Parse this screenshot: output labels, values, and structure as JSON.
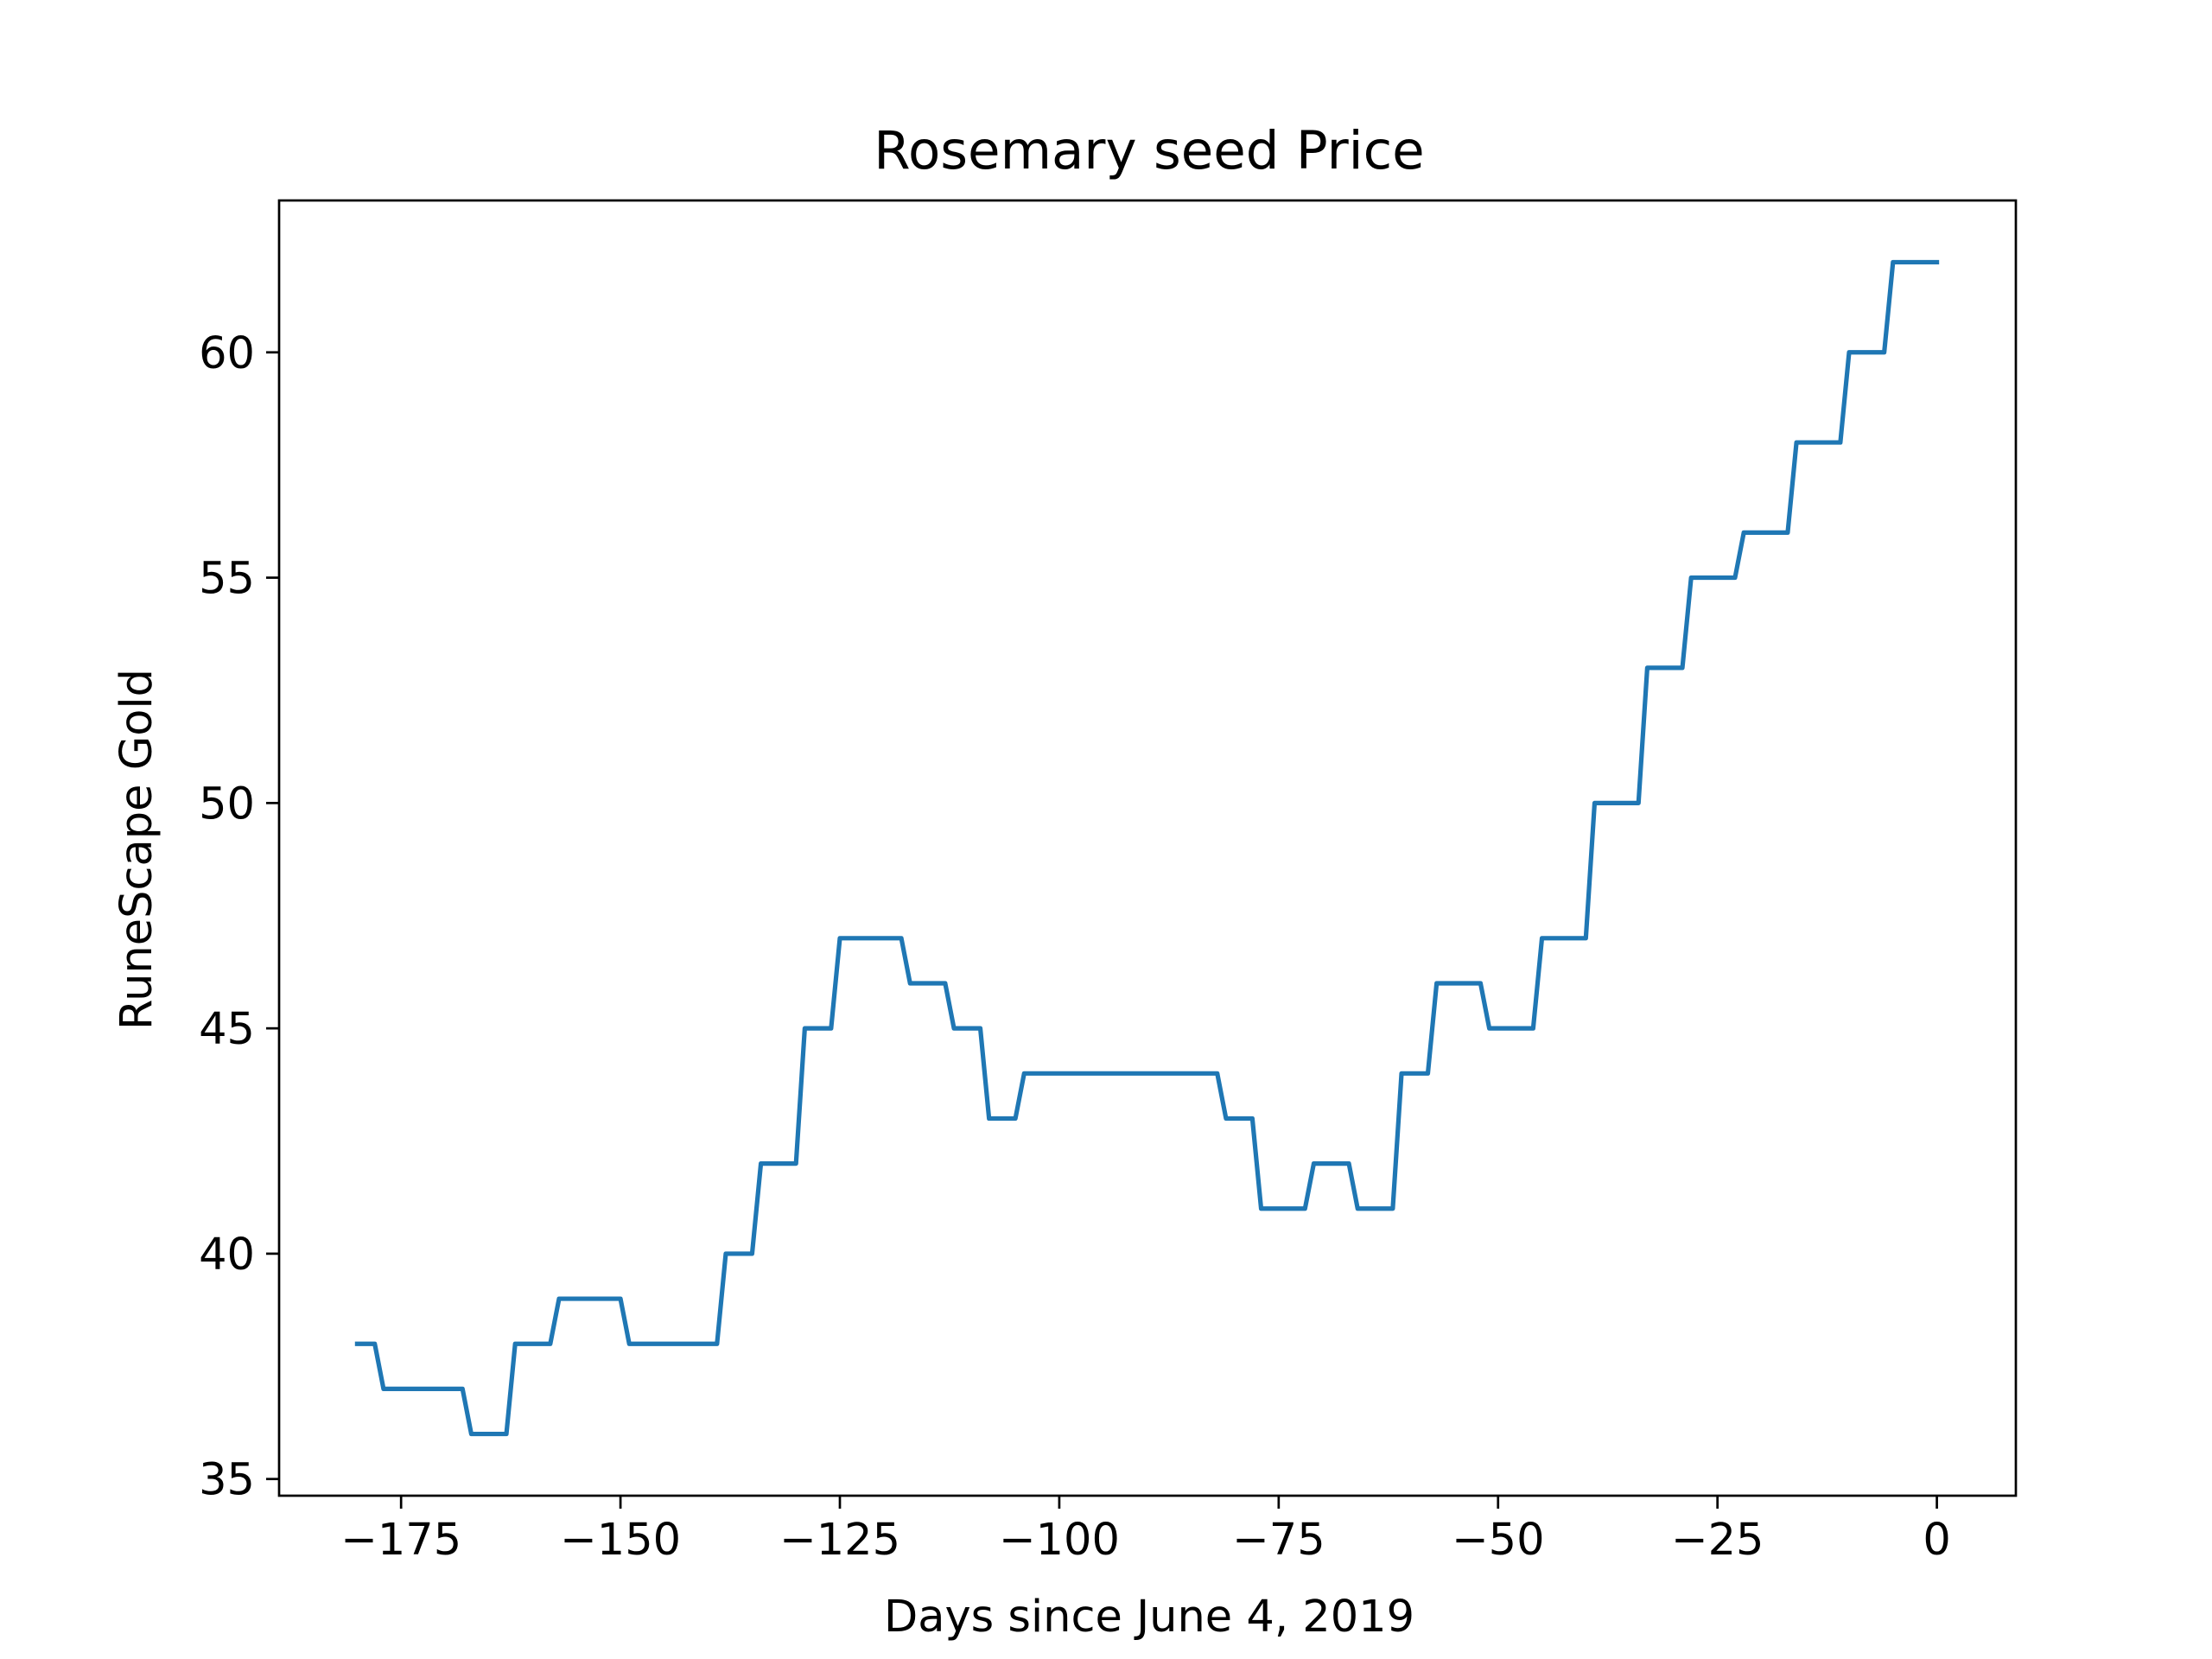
{
  "chart_data": {
    "type": "line",
    "title": "Rosemary seed Price",
    "xlabel": "Days since June 4, 2019",
    "ylabel": "RuneScape Gold",
    "xlim": [
      -188.9,
      9
    ],
    "ylim": [
      34.63,
      63.37
    ],
    "xticks": [
      -175,
      -150,
      -125,
      -100,
      -75,
      -50,
      -25,
      0
    ],
    "xtick_labels": [
      "−175",
      "−150",
      "−125",
      "−100",
      "−75",
      "−50",
      "−25",
      "0"
    ],
    "yticks": [
      35,
      40,
      45,
      50,
      55,
      60
    ],
    "ytick_labels": [
      "35",
      "40",
      "45",
      "50",
      "55",
      "60"
    ],
    "grid": false,
    "legend": "none",
    "series": [
      {
        "color": "#1f77b4",
        "x": [
          -180,
          -178,
          -177,
          -168,
          -167,
          -163,
          -162,
          -158,
          -157,
          -150,
          -149,
          -139,
          -138,
          -135,
          -134,
          -130,
          -129,
          -126,
          -125,
          -118,
          -117,
          -113,
          -112,
          -109,
          -108,
          -105,
          -104,
          -101,
          -100,
          -82,
          -81,
          -78,
          -77,
          -72,
          -71,
          -67,
          -66,
          -62,
          -61,
          -58,
          -57,
          -52,
          -51,
          -46,
          -45,
          -40,
          -39,
          -34,
          -33,
          -29,
          -28,
          -23,
          -22,
          -17,
          -16,
          -11,
          -10,
          -6,
          -5,
          0
        ],
        "y": [
          38,
          38,
          37,
          37,
          36,
          36,
          38,
          38,
          39,
          39,
          38,
          38,
          40,
          40,
          42,
          42,
          45,
          45,
          47,
          47,
          46,
          46,
          45,
          45,
          43,
          43,
          44,
          44,
          44,
          44,
          43,
          43,
          41,
          41,
          42,
          42,
          41,
          41,
          44,
          44,
          46,
          46,
          45,
          45,
          47,
          47,
          50,
          50,
          53,
          53,
          55,
          55,
          56,
          56,
          58,
          58,
          60,
          60,
          62,
          62
        ]
      }
    ]
  }
}
